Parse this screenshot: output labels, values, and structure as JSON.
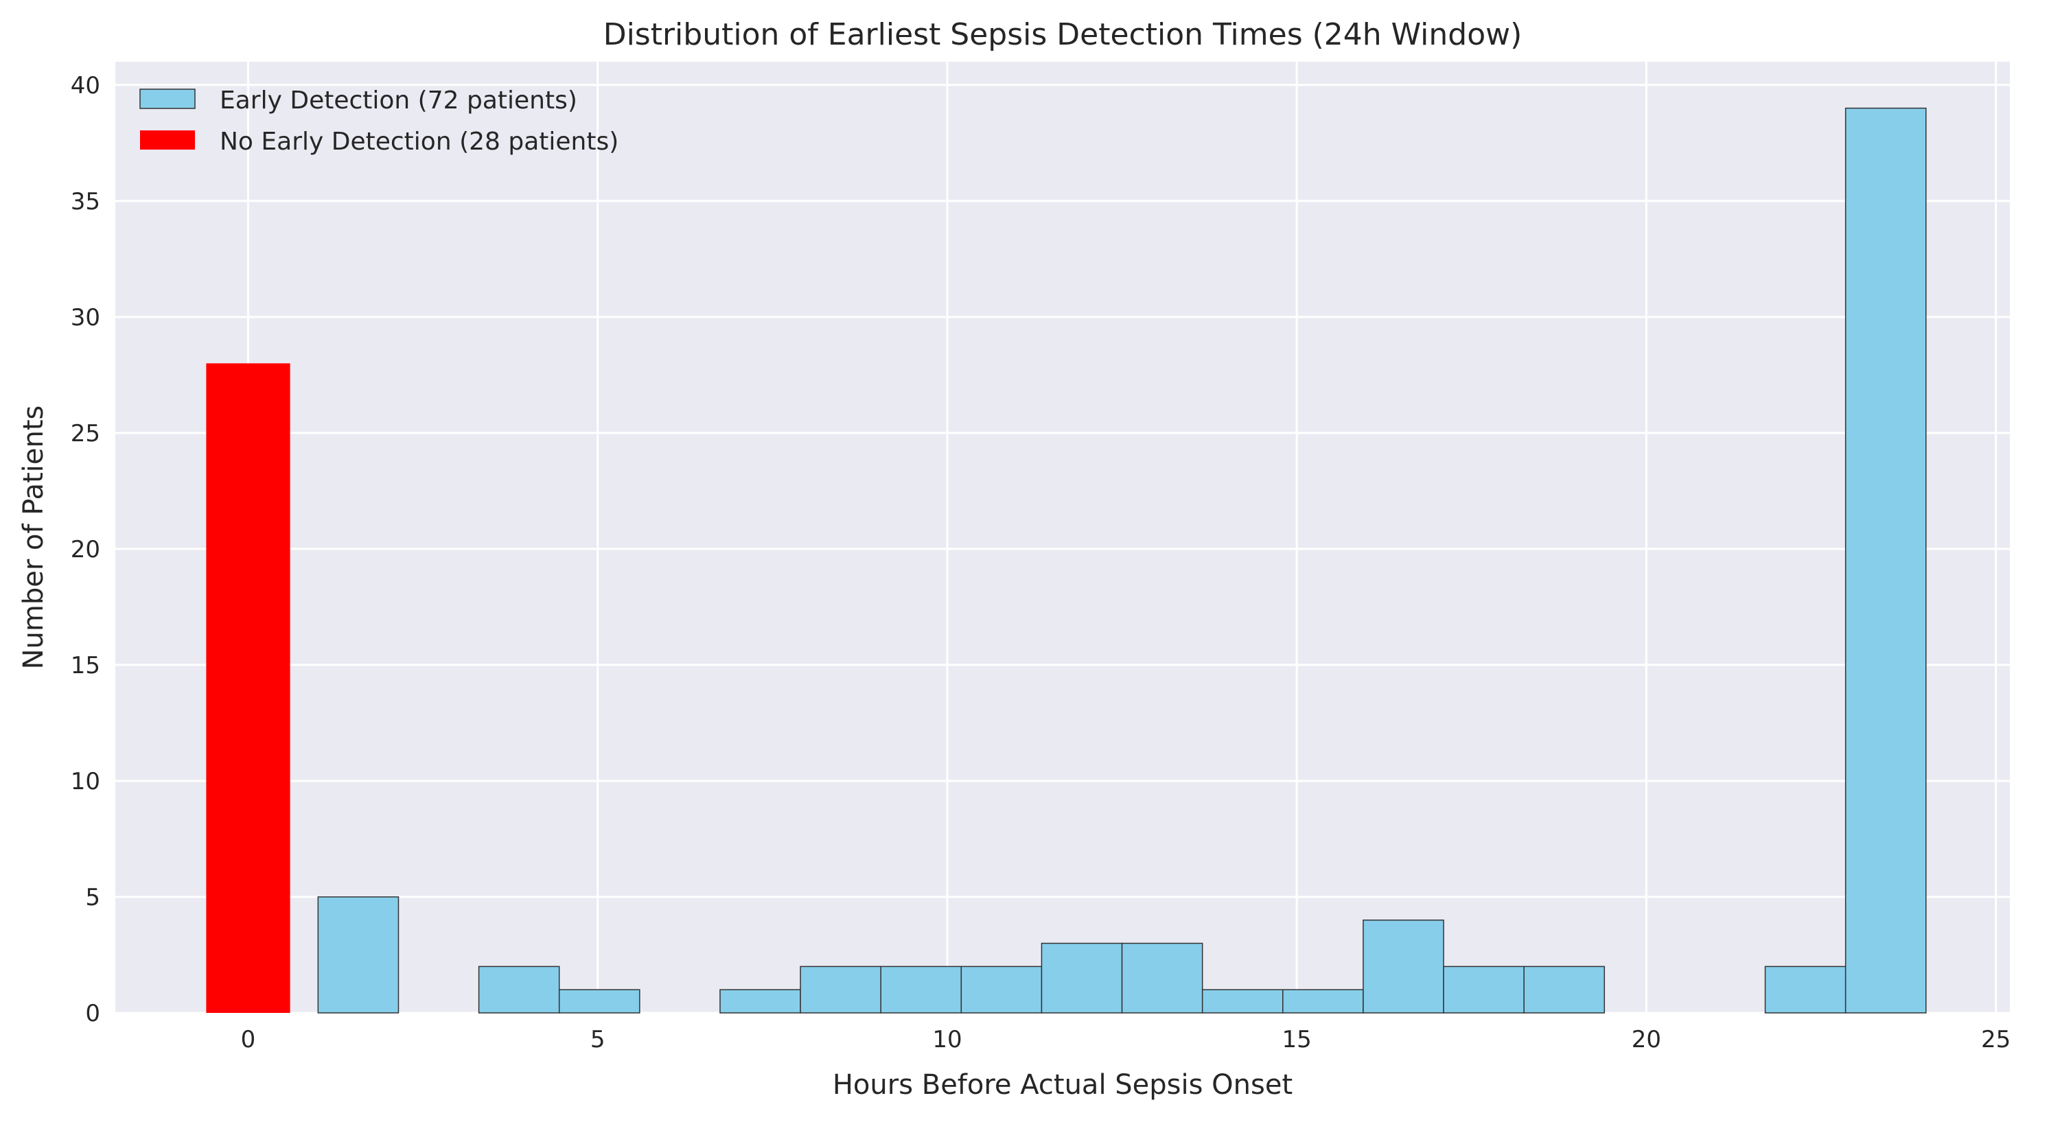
{
  "chart_data": {
    "type": "bar",
    "title": "Distribution of Earliest Sepsis Detection Times (24h Window)",
    "xlabel": "Hours Before Actual Sepsis Onset",
    "ylabel": "Number of Patients",
    "xlim": [
      -1.9,
      25.2
    ],
    "ylim": [
      0,
      41
    ],
    "xticks": [
      0,
      5,
      10,
      15,
      20,
      25
    ],
    "yticks": [
      0,
      5,
      10,
      15,
      20,
      25,
      30,
      35,
      40
    ],
    "grid": true,
    "legend_position": "top-left",
    "background": "#eaeaf2",
    "series": [
      {
        "name": "Early Detection (72 patients)",
        "color": "#87ceeb",
        "edgecolor": "#333333",
        "bins": [
          {
            "x0": 1.0,
            "x1": 2.15,
            "value": 5
          },
          {
            "x0": 2.15,
            "x1": 3.3,
            "value": 0
          },
          {
            "x0": 3.3,
            "x1": 4.45,
            "value": 2
          },
          {
            "x0": 4.45,
            "x1": 5.6,
            "value": 1
          },
          {
            "x0": 5.6,
            "x1": 6.75,
            "value": 0
          },
          {
            "x0": 6.75,
            "x1": 7.9,
            "value": 1
          },
          {
            "x0": 7.9,
            "x1": 9.05,
            "value": 2
          },
          {
            "x0": 9.05,
            "x1": 10.2,
            "value": 2
          },
          {
            "x0": 10.2,
            "x1": 11.35,
            "value": 2
          },
          {
            "x0": 11.35,
            "x1": 12.5,
            "value": 3
          },
          {
            "x0": 12.5,
            "x1": 13.65,
            "value": 3
          },
          {
            "x0": 13.65,
            "x1": 14.8,
            "value": 1
          },
          {
            "x0": 14.8,
            "x1": 15.95,
            "value": 1
          },
          {
            "x0": 15.95,
            "x1": 17.1,
            "value": 4
          },
          {
            "x0": 17.1,
            "x1": 18.25,
            "value": 2
          },
          {
            "x0": 18.25,
            "x1": 19.4,
            "value": 2
          },
          {
            "x0": 19.4,
            "x1": 20.55,
            "value": 0
          },
          {
            "x0": 20.55,
            "x1": 21.7,
            "value": 0
          },
          {
            "x0": 21.7,
            "x1": 22.85,
            "value": 2
          },
          {
            "x0": 22.85,
            "x1": 24.0,
            "value": 39
          }
        ]
      },
      {
        "name": "No Early Detection (28 patients)",
        "color": "#ff0000",
        "bins": [
          {
            "x0": -0.6,
            "x1": 0.6,
            "value": 28
          }
        ]
      }
    ]
  }
}
